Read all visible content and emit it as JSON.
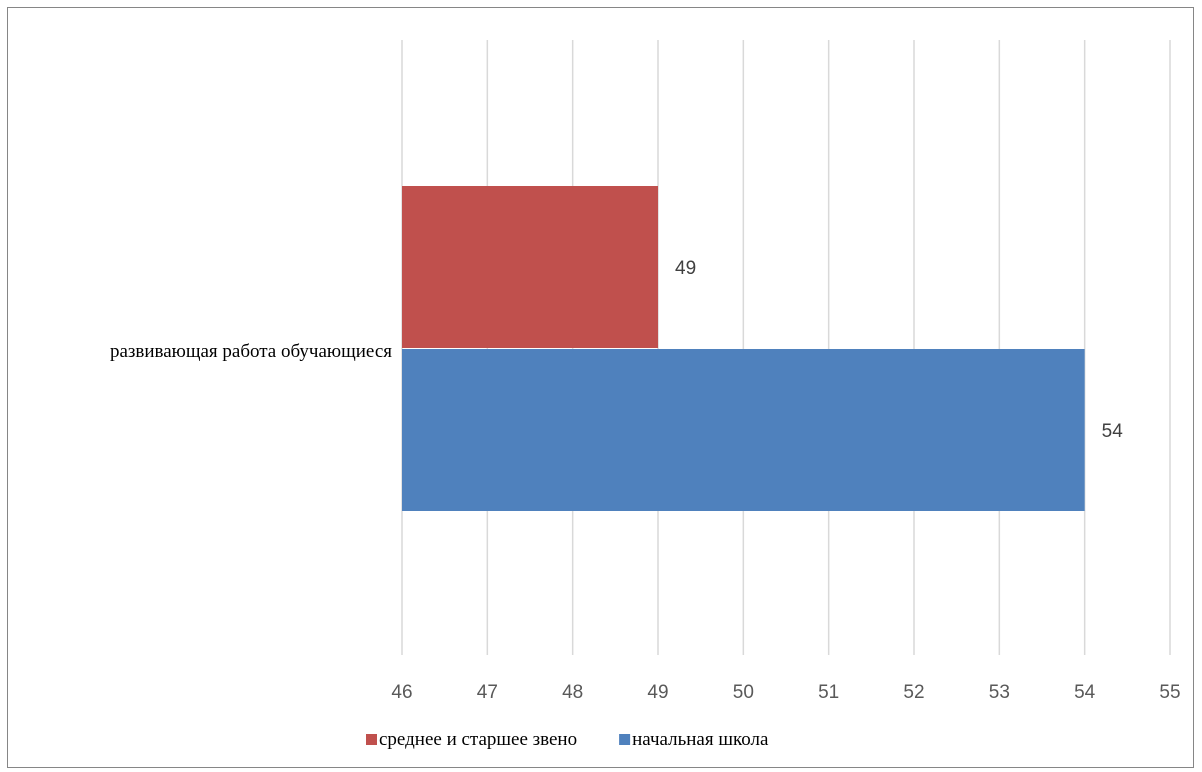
{
  "chart_data": {
    "type": "bar",
    "orientation": "horizontal",
    "categories": [
      "развивающая работа обучающиеся"
    ],
    "series": [
      {
        "name": "начальная школа",
        "values": [
          54
        ],
        "color": "#4f81bd"
      },
      {
        "name": "среднее и старшее звено",
        "values": [
          49
        ],
        "color": "#c0504d"
      }
    ],
    "x_ticks": [
      "46",
      "47",
      "48",
      "49",
      "50",
      "51",
      "52",
      "53",
      "54",
      "55"
    ],
    "xlim": [
      46,
      55
    ],
    "grid": "vertical",
    "legend_position": "bottom",
    "legend_order": [
      "среднее и старшее звено",
      "начальная школа"
    ],
    "data_labels": true
  }
}
